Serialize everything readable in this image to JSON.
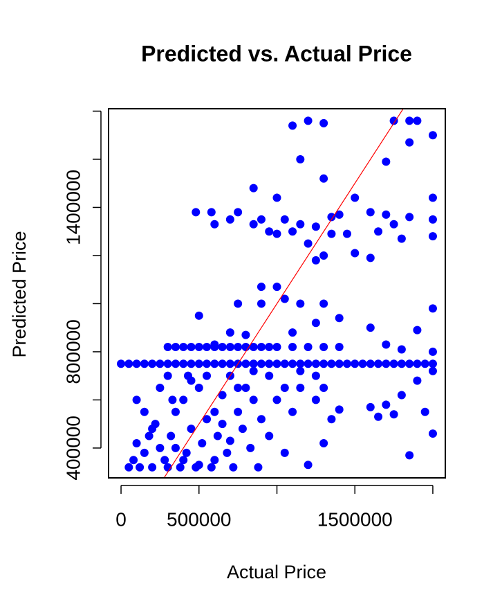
{
  "chart_data": {
    "type": "scatter",
    "title": "Predicted vs. Actual Price",
    "x_label": "Actual Price",
    "y_label": "Predicted Price",
    "color": "#0000ff",
    "reference_line": {
      "slope": 1,
      "intercept": 0,
      "color": "#ff0000"
    },
    "xlim": [
      -80000,
      2080000
    ],
    "ylim": [
      276000,
      1810000
    ],
    "xticks": [
      0,
      500000,
      1000000,
      1500000,
      2000000
    ],
    "yticks": [
      400000,
      600000,
      800000,
      1000000,
      1200000,
      1400000,
      1600000,
      1800000
    ],
    "x": [
      0,
      50000,
      100000,
      150000,
      200000,
      250000,
      300000,
      350000,
      400000,
      450000,
      500000,
      550000,
      600000,
      650000,
      700000,
      750000,
      800000,
      850000,
      900000,
      950000,
      1000000,
      1050000,
      1100000,
      1150000,
      1200000,
      1250000,
      1300000,
      1350000,
      1400000,
      1450000,
      1500000,
      1550000,
      1600000,
      1650000,
      1700000,
      1750000,
      1800000,
      1850000,
      1900000,
      1950000,
      2000000,
      300000,
      350000,
      400000,
      450000,
      500000,
      550000,
      600000,
      650000,
      700000,
      750000,
      800000,
      850000,
      900000,
      950000,
      1000000,
      1100000,
      1200000,
      1300000,
      1400000,
      50000,
      80000,
      100000,
      120000,
      150000,
      180000,
      200000,
      220000,
      250000,
      280000,
      300000,
      320000,
      350000,
      380000,
      400000,
      420000,
      450000,
      480000,
      500000,
      520000,
      550000,
      580000,
      600000,
      620000,
      650000,
      680000,
      700000,
      720000,
      750000,
      780000,
      800000,
      830000,
      850000,
      880000,
      900000,
      950000,
      1000000,
      1050000,
      1100000,
      1150000,
      1200000,
      1250000,
      1300000,
      1350000,
      1400000,
      1600000,
      1650000,
      1700000,
      1750000,
      1850000,
      1950000,
      2000000,
      150000,
      100000,
      250000,
      300000,
      450000,
      350000,
      200000,
      400000,
      600000,
      700000,
      500000,
      330000,
      430000,
      550000,
      650000,
      750000,
      850000,
      950000,
      1050000,
      1150000,
      1250000,
      1300000,
      1800000,
      1900000,
      2000000,
      500000,
      600000,
      700000,
      750000,
      800000,
      900000,
      900000,
      1000000,
      1050000,
      1100000,
      1150000,
      1250000,
      1300000,
      1400000,
      1600000,
      1900000,
      2000000,
      2000000,
      1700000,
      1800000,
      480000,
      580000,
      600000,
      700000,
      750000,
      850000,
      900000,
      950000,
      1000000,
      1000000,
      1050000,
      1100000,
      1150000,
      1200000,
      1250000,
      1300000,
      1350000,
      1400000,
      1450000,
      1500000,
      1500000,
      1600000,
      1650000,
      1700000,
      1750000,
      1800000,
      1850000,
      2000000,
      2000000,
      2000000,
      850000,
      1150000,
      1100000,
      1200000,
      1300000,
      1300000,
      1700000,
      1750000,
      1850000,
      1850000,
      1900000,
      2000000,
      1250000,
      1600000,
      1350000
    ],
    "y": [
      750000,
      750000,
      750000,
      750000,
      750000,
      750000,
      750000,
      750000,
      750000,
      750000,
      750000,
      750000,
      750000,
      750000,
      750000,
      750000,
      750000,
      750000,
      750000,
      750000,
      750000,
      750000,
      750000,
      750000,
      750000,
      750000,
      750000,
      750000,
      750000,
      750000,
      750000,
      750000,
      750000,
      750000,
      750000,
      750000,
      750000,
      750000,
      750000,
      750000,
      750000,
      820000,
      820000,
      820000,
      820000,
      820000,
      820000,
      820000,
      820000,
      820000,
      820000,
      820000,
      820000,
      820000,
      820000,
      820000,
      820000,
      820000,
      820000,
      820000,
      320000,
      350000,
      420000,
      320000,
      380000,
      450000,
      320000,
      500000,
      400000,
      350000,
      320000,
      450000,
      550000,
      320000,
      600000,
      380000,
      480000,
      320000,
      650000,
      420000,
      700000,
      320000,
      550000,
      450000,
      620000,
      380000,
      700000,
      320000,
      550000,
      480000,
      650000,
      400000,
      600000,
      320000,
      520000,
      450000,
      600000,
      380000,
      550000,
      650000,
      330000,
      600000,
      420000,
      520000,
      560000,
      570000,
      530000,
      580000,
      540000,
      370000,
      550000,
      460000,
      550000,
      600000,
      650000,
      700000,
      680000,
      400000,
      480000,
      350000,
      350000,
      430000,
      330000,
      600000,
      700000,
      520000,
      500000,
      650000,
      720000,
      700000,
      650000,
      720000,
      700000,
      650000,
      620000,
      680000,
      720000,
      950000,
      830000,
      880000,
      1000000,
      870000,
      1000000,
      1070000,
      1070000,
      1020000,
      880000,
      1000000,
      920000,
      1000000,
      940000,
      900000,
      890000,
      980000,
      800000,
      830000,
      810000,
      1380000,
      1380000,
      1330000,
      1350000,
      1380000,
      1330000,
      1350000,
      1300000,
      1290000,
      1440000,
      1350000,
      1300000,
      1330000,
      1250000,
      1320000,
      1200000,
      1290000,
      1370000,
      1290000,
      1440000,
      1210000,
      1380000,
      1300000,
      1370000,
      1330000,
      1270000,
      1360000,
      1350000,
      1440000,
      1280000,
      1480000,
      1600000,
      1740000,
      1760000,
      1750000,
      1520000,
      1590000,
      1760000,
      1670000,
      1760000,
      1760000,
      1700000,
      1180000,
      1190000,
      1360000
    ]
  }
}
